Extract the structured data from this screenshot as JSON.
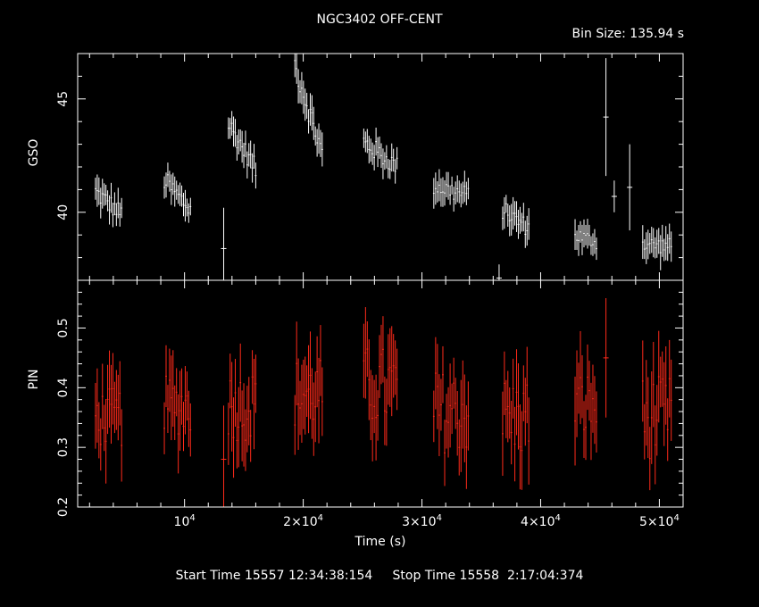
{
  "header": {
    "title": "NGC3402 OFF-CENT",
    "bin_size": "Bin Size: 135.94 s"
  },
  "footer": {
    "start_label": "Start Time",
    "start_value": "15557 12:34:38:154",
    "stop_label": "Stop Time",
    "stop_value": "15558  2:17:04:374"
  },
  "colors": {
    "background": "#000000",
    "axes": "#ffffff",
    "gso": "#ffffff",
    "pin": "#ff2a1a"
  },
  "chart_data": [
    {
      "type": "scatter",
      "panel": "top",
      "ylabel": "GSO",
      "xlim": [
        1000,
        52000
      ],
      "ylim": [
        37.0,
        47.0
      ],
      "yticks": [
        40,
        45
      ],
      "color": "#ffffff",
      "segments": [
        {
          "x_start": 2500,
          "x_end": 4700,
          "y_start": 40.9,
          "y_end": 39.9,
          "err": 0.55,
          "spread": 0.45,
          "n": 16
        },
        {
          "x_start": 8300,
          "x_end": 10500,
          "y_start": 41.4,
          "y_end": 40.1,
          "err": 0.55,
          "spread": 0.45,
          "n": 16
        },
        {
          "x_start": 13700,
          "x_end": 16000,
          "y_start": 43.9,
          "y_end": 41.9,
          "err": 0.55,
          "spread": 0.45,
          "n": 17
        },
        {
          "x_start": 19300,
          "x_end": 21600,
          "y_start": 46.5,
          "y_end": 42.6,
          "err": 0.6,
          "spread": 0.55,
          "n": 17
        },
        {
          "x_start": 25100,
          "x_end": 27900,
          "y_start": 43.1,
          "y_end": 42.0,
          "err": 0.55,
          "spread": 0.45,
          "n": 20
        },
        {
          "x_start": 31000,
          "x_end": 33900,
          "y_start": 41.2,
          "y_end": 40.7,
          "err": 0.55,
          "spread": 0.45,
          "n": 20
        },
        {
          "x_start": 36800,
          "x_end": 39000,
          "y_start": 40.1,
          "y_end": 39.3,
          "err": 0.55,
          "spread": 0.4,
          "n": 16
        },
        {
          "x_start": 42900,
          "x_end": 44700,
          "y_start": 39.0,
          "y_end": 38.7,
          "err": 0.55,
          "spread": 0.35,
          "n": 13
        },
        {
          "x_start": 48600,
          "x_end": 51000,
          "y_start": 38.6,
          "y_end": 38.5,
          "err": 0.6,
          "spread": 0.35,
          "n": 17
        }
      ],
      "outliers": [
        {
          "x": 13300,
          "y": 38.4,
          "err": 1.8
        },
        {
          "x": 36500,
          "y": 37.1,
          "err": 0.6
        },
        {
          "x": 45500,
          "y": 44.2,
          "err": 2.6
        },
        {
          "x": 46200,
          "y": 40.7,
          "err": 0.7
        },
        {
          "x": 47500,
          "y": 41.1,
          "err": 1.9
        }
      ]
    },
    {
      "type": "scatter",
      "panel": "bottom",
      "ylabel": "PIN",
      "xlabel": "Time (s)",
      "xlim": [
        1000,
        52000
      ],
      "ylim": [
        0.2,
        0.58
      ],
      "yticks": [
        0.2,
        0.3,
        0.4,
        0.5
      ],
      "xticks": [
        {
          "value": 10000,
          "label": "10",
          "exp": "4"
        },
        {
          "value": 20000,
          "label": "2×10",
          "exp": "4"
        },
        {
          "value": 30000,
          "label": "3×10",
          "exp": "4"
        },
        {
          "value": 40000,
          "label": "4×10",
          "exp": "4"
        },
        {
          "value": 50000,
          "label": "5×10",
          "exp": "4"
        }
      ],
      "color": "#ff2a1a",
      "segments": [
        {
          "x_start": 2500,
          "x_end": 4700,
          "y_mean": 0.35,
          "err": 0.055,
          "spread": 0.05,
          "n": 16
        },
        {
          "x_start": 8300,
          "x_end": 10500,
          "y_mean": 0.37,
          "err": 0.055,
          "spread": 0.05,
          "n": 16
        },
        {
          "x_start": 13700,
          "x_end": 16000,
          "y_mean": 0.37,
          "err": 0.06,
          "spread": 0.06,
          "n": 17
        },
        {
          "x_start": 19300,
          "x_end": 21600,
          "y_mean": 0.39,
          "err": 0.06,
          "spread": 0.06,
          "n": 17
        },
        {
          "x_start": 25100,
          "x_end": 27900,
          "y_mean": 0.4,
          "err": 0.06,
          "spread": 0.07,
          "n": 20
        },
        {
          "x_start": 31000,
          "x_end": 33900,
          "y_mean": 0.36,
          "err": 0.06,
          "spread": 0.07,
          "n": 20
        },
        {
          "x_start": 36800,
          "x_end": 39000,
          "y_mean": 0.35,
          "err": 0.06,
          "spread": 0.07,
          "n": 16
        },
        {
          "x_start": 42900,
          "x_end": 44700,
          "y_mean": 0.37,
          "err": 0.06,
          "spread": 0.06,
          "n": 13
        },
        {
          "x_start": 48600,
          "x_end": 51000,
          "y_mean": 0.35,
          "err": 0.06,
          "spread": 0.07,
          "n": 17
        }
      ],
      "outliers": [
        {
          "x": 13300,
          "y": 0.28,
          "err": 0.09
        },
        {
          "x": 45500,
          "y": 0.45,
          "err": 0.1
        }
      ]
    }
  ]
}
